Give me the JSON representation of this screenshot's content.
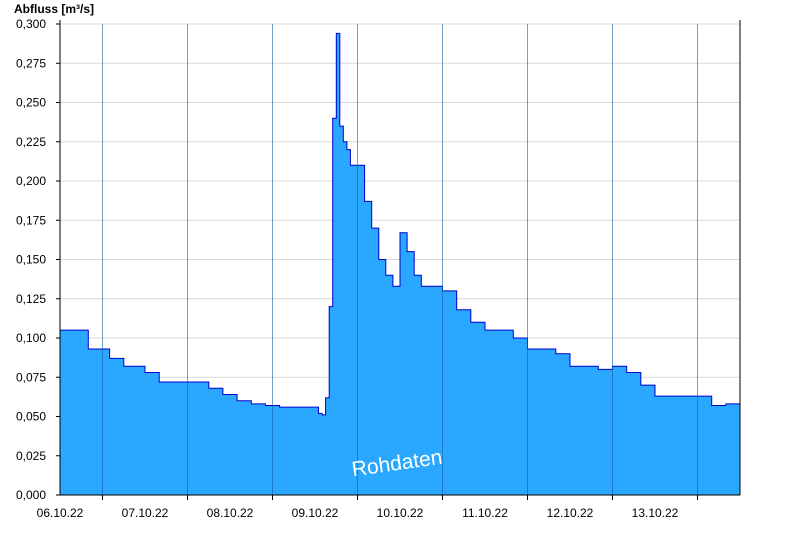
{
  "chart_data": {
    "type": "area",
    "title": "Abfluss [m³/s]",
    "watermark": "Rohdaten",
    "colors": {
      "fill": "#2AA8FF",
      "line": "#0000CC",
      "grid": "#d9d9d9",
      "axis": "#000000",
      "day_line": "#1a5fa8"
    },
    "ylim": [
      0,
      0.3
    ],
    "y_ticks": [
      "0,000",
      "0,025",
      "0,050",
      "0,075",
      "0,100",
      "0,125",
      "0,150",
      "0,175",
      "0,200",
      "0,225",
      "0,250",
      "0,275",
      "0,300"
    ],
    "y_tick_values": [
      0,
      0.025,
      0.05,
      0.075,
      0.1,
      0.125,
      0.15,
      0.175,
      0.2,
      0.225,
      0.25,
      0.275,
      0.3
    ],
    "xlim_days": [
      "05.10.22 12:00",
      "13.10.22 12:00"
    ],
    "x_ticks": [
      "06.10.22",
      "07.10.22",
      "08.10.22",
      "09.10.22",
      "10.10.22",
      "11.10.22",
      "12.10.22",
      "13.10.22"
    ],
    "grid": true,
    "series": [
      {
        "x": [
          "05.10.22 12:00",
          "05.10.22 16:00",
          "05.10.22 20:00",
          "06.10.22 00:00",
          "06.10.22 02:00",
          "06.10.22 06:00",
          "06.10.22 10:00",
          "06.10.22 12:00",
          "06.10.22 16:00",
          "06.10.22 20:00",
          "07.10.22 00:00",
          "07.10.22 06:00",
          "07.10.22 10:00",
          "07.10.22 14:00",
          "07.10.22 18:00",
          "07.10.22 22:00",
          "08.10.22 02:00",
          "08.10.22 06:00",
          "08.10.22 10:00",
          "08.10.22 13:00",
          "08.10.22 14:00",
          "08.10.22 15:00",
          "08.10.22 16:00",
          "08.10.22 17:00",
          "08.10.22 18:00",
          "08.10.22 19:00",
          "08.10.22 20:00",
          "08.10.22 21:00",
          "08.10.22 22:00",
          "09.10.22 00:00",
          "09.10.22 02:00",
          "09.10.22 04:00",
          "09.10.22 06:00",
          "09.10.22 08:00",
          "09.10.22 10:00",
          "09.10.22 12:00",
          "09.10.22 14:00",
          "09.10.22 16:00",
          "09.10.22 18:00",
          "09.10.22 20:00",
          "10.10.22 00:00",
          "10.10.22 04:00",
          "10.10.22 08:00",
          "10.10.22 12:00",
          "10.10.22 16:00",
          "10.10.22 20:00",
          "11.10.22 00:00",
          "11.10.22 04:00",
          "11.10.22 08:00",
          "11.10.22 12:00",
          "11.10.22 16:00",
          "11.10.22 20:00",
          "12.10.22 00:00",
          "12.10.22 04:00",
          "12.10.22 08:00",
          "12.10.22 12:00",
          "12.10.22 16:00",
          "12.10.22 20:00",
          "13.10.22 00:00",
          "13.10.22 04:00",
          "13.10.22 08:00",
          "13.10.22 12:00"
        ],
        "values": [
          0.105,
          0.105,
          0.093,
          0.093,
          0.087,
          0.082,
          0.082,
          0.078,
          0.072,
          0.072,
          0.072,
          0.068,
          0.064,
          0.06,
          0.058,
          0.057,
          0.056,
          0.056,
          0.056,
          0.052,
          0.051,
          0.062,
          0.12,
          0.24,
          0.294,
          0.235,
          0.225,
          0.22,
          0.21,
          0.21,
          0.187,
          0.17,
          0.15,
          0.14,
          0.133,
          0.167,
          0.155,
          0.14,
          0.133,
          0.133,
          0.13,
          0.118,
          0.11,
          0.105,
          0.105,
          0.1,
          0.093,
          0.093,
          0.09,
          0.082,
          0.082,
          0.08,
          0.082,
          0.078,
          0.07,
          0.063,
          0.063,
          0.063,
          0.063,
          0.057,
          0.058,
          0.058
        ]
      }
    ]
  }
}
